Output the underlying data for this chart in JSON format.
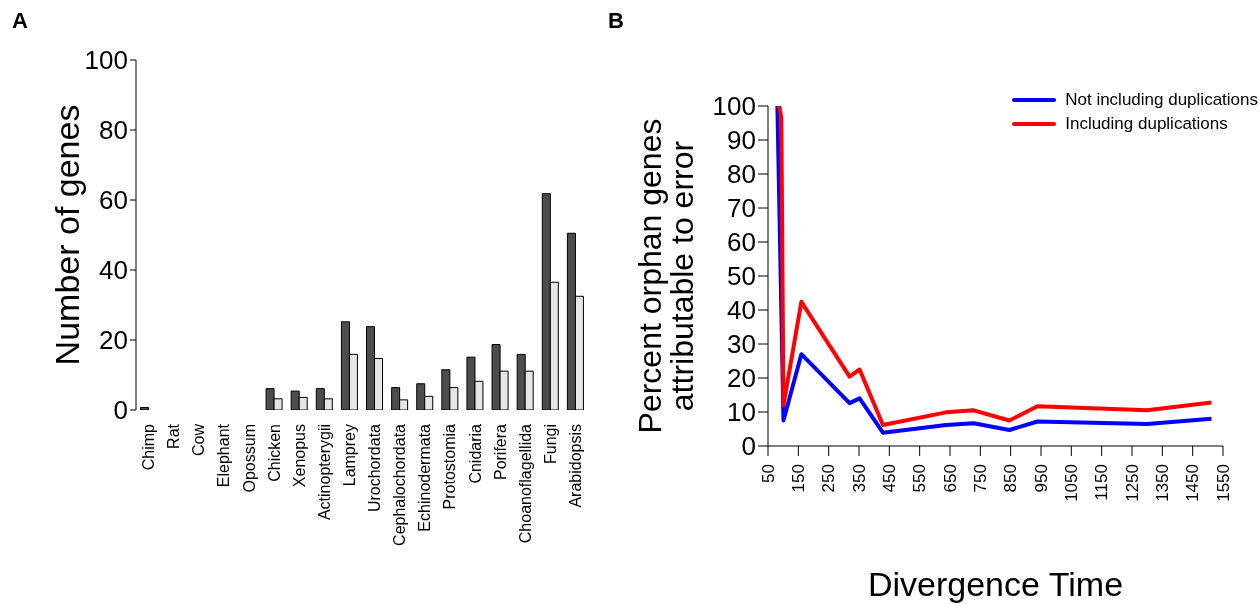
{
  "chart_data": [
    {
      "type": "bar",
      "annotations": [
        "A"
      ],
      "ylabel": "Number of genes",
      "categories": [
        "Chimp",
        "Rat",
        "Cow",
        "Elephant",
        "Opossum",
        "Chicken",
        "Xenopus",
        "Actinopterygii",
        "Lamprey",
        "Urochordata",
        "Cephalochordata",
        "Echinodermata",
        "Protostomia",
        "Cnidaria",
        "Porifera",
        "Choanoflagellida",
        "Fungi",
        "Arabidopsis"
      ],
      "series": [
        {
          "color": "#4d4d4d",
          "values": [
            0.7,
            0,
            0,
            0,
            0,
            6.1,
            5.4,
            6.1,
            25.2,
            23.8,
            6.4,
            7.5,
            11.5,
            15.1,
            18.7,
            15.9,
            61.8,
            50.5
          ]
        },
        {
          "color": "#e6e6e6",
          "values": [
            null,
            0,
            0,
            0,
            0,
            3.2,
            3.6,
            3.2,
            15.9,
            14.7,
            2.9,
            3.9,
            6.4,
            8.2,
            11.1,
            11.1,
            36.5,
            32.5
          ]
        }
      ],
      "ylim": [
        0,
        100
      ],
      "yticks": [
        0,
        20,
        40,
        60,
        80,
        100
      ],
      "grid": false,
      "legend": false
    },
    {
      "type": "line",
      "annotations": [
        "B"
      ],
      "xlabel": "Divergence Time",
      "ylabel": "Percent orphan genes\nattributable to error",
      "series": [
        {
          "name": "Not including duplications",
          "color": "#0000ff",
          "x": [
            81,
            101,
            160,
            319,
            352,
            429,
            637,
            728,
            846,
            938,
            1300,
            1512
          ],
          "values": [
            100,
            7.5,
            27,
            12.6,
            14,
            3.9,
            6.2,
            6.7,
            4.7,
            7.2,
            6.5,
            8
          ]
        },
        {
          "name": "Including duplications",
          "color": "#ff0000",
          "x": [
            81,
            88,
            94,
            101,
            160,
            319,
            352,
            429,
            637,
            728,
            846,
            938,
            1300,
            1512
          ],
          "values": [
            100,
            99.7,
            96.4,
            12,
            42.4,
            20.4,
            22.5,
            6.2,
            9.9,
            10.5,
            7.5,
            11.7,
            10.5,
            12.8
          ]
        }
      ],
      "xlim": [
        50,
        1550
      ],
      "xticks": [
        50,
        150,
        250,
        350,
        450,
        550,
        650,
        750,
        850,
        950,
        1050,
        1150,
        1250,
        1350,
        1450,
        1550
      ],
      "ylim": [
        0,
        100
      ],
      "yticks": [
        0,
        10,
        20,
        30,
        40,
        50,
        60,
        70,
        80,
        90,
        100
      ],
      "grid": false,
      "legend": "top right",
      "marker": "none",
      "line_style": "solid"
    }
  ]
}
